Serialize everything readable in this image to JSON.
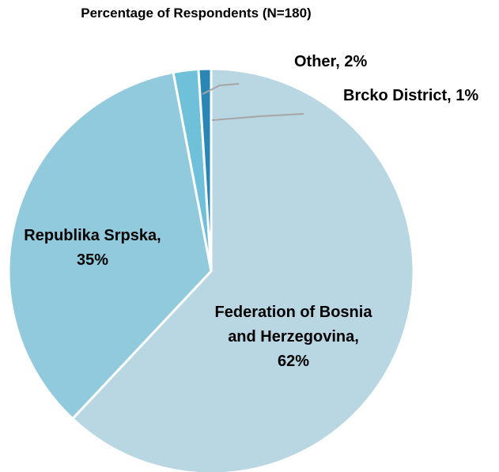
{
  "chart_data": {
    "type": "pie",
    "title": "Percentage of Respondents (N=180)",
    "categories": [
      "Federation of Bosnia and Herzegovina",
      "Republika Srpska",
      "Other",
      "Brcko District"
    ],
    "values": [
      62,
      35,
      2,
      1
    ],
    "unit": "%",
    "data_labels": [
      {
        "lines": [
          "Federation of Bosnia",
          "and Herzegovina,",
          "62%"
        ]
      },
      {
        "lines": [
          "Republika Srpska,",
          "35%"
        ]
      },
      {
        "lines": [
          "Other, 2%"
        ]
      },
      {
        "lines": [
          "Brcko District, 1%"
        ]
      }
    ],
    "colors": [
      "#b9d6e3",
      "#92cadd",
      "#6ec1d9",
      "#2a86b5"
    ],
    "start_angle_deg": 0,
    "direction": "clockwise",
    "legend": "none"
  }
}
